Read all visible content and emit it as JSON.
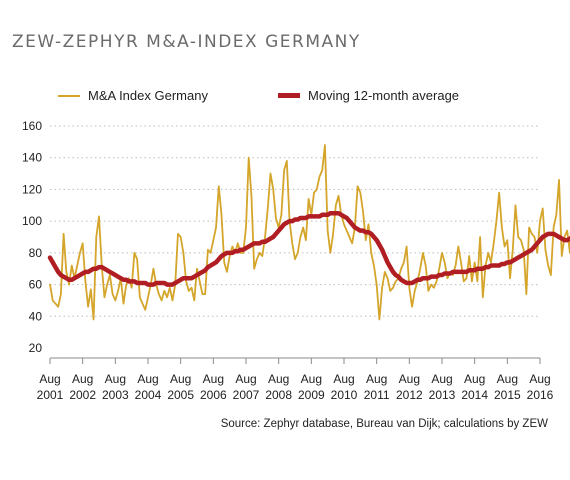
{
  "title": "ZEW-ZEPHYR M&A-INDEX GERMANY",
  "source": "Source: Zephyr database, Bureau van Dijk; calculations by ZEW",
  "colors": {
    "index": "#D4A52A",
    "average": "#B01E23",
    "grid": "#bdbdbd",
    "axis": "#8a8a8a"
  },
  "chart_data": {
    "type": "line",
    "title": "ZEW-ZEPHYR M&A-INDEX GERMANY",
    "xlabel": "",
    "ylabel": "",
    "ylim": [
      20,
      160
    ],
    "yticks": [
      20,
      40,
      60,
      80,
      100,
      120,
      140,
      160
    ],
    "xlim": [
      2001.583,
      2016.583
    ],
    "xticks": [
      {
        "x": 2001.583,
        "m": "Aug",
        "y": "2001"
      },
      {
        "x": 2002.583,
        "m": "Aug",
        "y": "2002"
      },
      {
        "x": 2003.583,
        "m": "Aug",
        "y": "2003"
      },
      {
        "x": 2004.583,
        "m": "Aug",
        "y": "2004"
      },
      {
        "x": 2005.583,
        "m": "Aug",
        "y": "2005"
      },
      {
        "x": 2006.583,
        "m": "Aug",
        "y": "2006"
      },
      {
        "x": 2007.583,
        "m": "Aug",
        "y": "2007"
      },
      {
        "x": 2008.583,
        "m": "Aug",
        "y": "2008"
      },
      {
        "x": 2009.583,
        "m": "Aug",
        "y": "2009"
      },
      {
        "x": 2010.583,
        "m": "Aug",
        "y": "2010"
      },
      {
        "x": 2011.583,
        "m": "Aug",
        "y": "2011"
      },
      {
        "x": 2012.583,
        "m": "Aug",
        "y": "2012"
      },
      {
        "x": 2013.583,
        "m": "Aug",
        "y": "2013"
      },
      {
        "x": 2014.583,
        "m": "Aug",
        "y": "2014"
      },
      {
        "x": 2015.583,
        "m": "Aug",
        "y": "2015"
      },
      {
        "x": 2016.583,
        "m": "Aug",
        "y": "2016"
      }
    ],
    "grid": "horizontal dotted",
    "legend_position": "top",
    "series": [
      {
        "name": "M&A Index Germany",
        "x_start": 2001.583,
        "x_step": 0.08333,
        "values": [
          60,
          50,
          48,
          46,
          54,
          92,
          68,
          60,
          72,
          64,
          72,
          80,
          86,
          62,
          46,
          57,
          38,
          90,
          103,
          72,
          52,
          60,
          66,
          54,
          50,
          56,
          64,
          48,
          60,
          64,
          58,
          80,
          76,
          52,
          48,
          44,
          52,
          60,
          70,
          60,
          54,
          50,
          56,
          52,
          58,
          50,
          60,
          92,
          90,
          80,
          62,
          56,
          58,
          50,
          70,
          62,
          54,
          54,
          82,
          80,
          88,
          96,
          122,
          104,
          74,
          68,
          78,
          84,
          80,
          86,
          80,
          80,
          96,
          140,
          116,
          70,
          76,
          80,
          78,
          90,
          108,
          130,
          120,
          102,
          96,
          104,
          132,
          138,
          100,
          86,
          76,
          80,
          90,
          96,
          88,
          114,
          104,
          118,
          120,
          128,
          132,
          148,
          94,
          80,
          92,
          110,
          116,
          104,
          98,
          94,
          90,
          86,
          96,
          122,
          118,
          106,
          88,
          98,
          80,
          72,
          60,
          38,
          58,
          68,
          64,
          56,
          58,
          62,
          64,
          70,
          74,
          84,
          58,
          46,
          56,
          62,
          70,
          80,
          72,
          56,
          60,
          58,
          62,
          70,
          80,
          74,
          64,
          68,
          66,
          72,
          84,
          74,
          62,
          64,
          78,
          62,
          74,
          62,
          90,
          52,
          72,
          80,
          74,
          86,
          100,
          118,
          96,
          84,
          88,
          64,
          82,
          110,
          90,
          88,
          82,
          54,
          96,
          92,
          90,
          80,
          100,
          108,
          82,
          72,
          66,
          96,
          104,
          126,
          78,
          90,
          94,
          80,
          116,
          84,
          84,
          80
        ]
      },
      {
        "name": "Moving 12-month average",
        "x_start": 2001.583,
        "x_step": 0.08333,
        "values": [
          77,
          74,
          71,
          68,
          66,
          65,
          64,
          63,
          63,
          64,
          65,
          66,
          67,
          68,
          68,
          69,
          70,
          70,
          71,
          71,
          70,
          69,
          68,
          67,
          66,
          65,
          64,
          63,
          63,
          62,
          62,
          62,
          61,
          61,
          61,
          61,
          60,
          60,
          60,
          61,
          61,
          61,
          61,
          60,
          60,
          60,
          61,
          62,
          63,
          64,
          64,
          64,
          64,
          65,
          66,
          67,
          68,
          69,
          71,
          72,
          73,
          74,
          76,
          78,
          79,
          80,
          80,
          80,
          81,
          81,
          82,
          82,
          83,
          84,
          85,
          86,
          86,
          86,
          87,
          87,
          88,
          89,
          90,
          92,
          94,
          96,
          98,
          99,
          100,
          100,
          101,
          101,
          102,
          102,
          102,
          103,
          103,
          103,
          103,
          103,
          104,
          104,
          104,
          105,
          105,
          105,
          105,
          104,
          103,
          102,
          100,
          98,
          96,
          95,
          94,
          94,
          93,
          93,
          92,
          90,
          88,
          85,
          82,
          78,
          74,
          71,
          68,
          66,
          65,
          63,
          62,
          61,
          61,
          61,
          62,
          63,
          63,
          64,
          64,
          64,
          65,
          65,
          65,
          66,
          66,
          67,
          67,
          67,
          68,
          68,
          68,
          68,
          68,
          68,
          69,
          69,
          69,
          70,
          70,
          70,
          71,
          71,
          72,
          72,
          72,
          72,
          73,
          73,
          74,
          74,
          75,
          76,
          77,
          78,
          79,
          80,
          81,
          82,
          84,
          86,
          88,
          90,
          91,
          92,
          92,
          92,
          91,
          90,
          89,
          88,
          88,
          89,
          90,
          91,
          92,
          93,
          93,
          94
        ]
      }
    ]
  }
}
